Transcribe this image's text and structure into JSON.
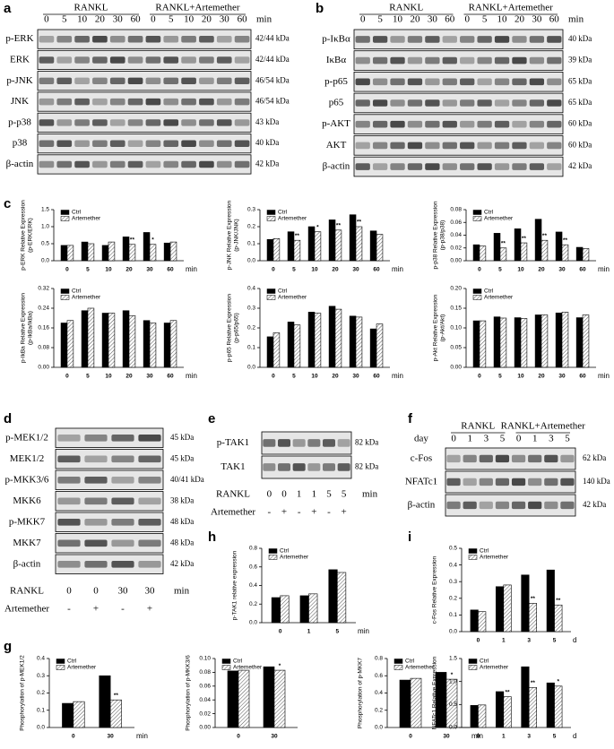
{
  "panel_letters": [
    "a",
    "b",
    "c",
    "d",
    "e",
    "f",
    "g",
    "h",
    "i"
  ],
  "blots": [
    {
      "groups": [
        "RANKL",
        "RANKL+Artemether"
      ],
      "lanes": [
        "0",
        "5",
        "10",
        "20",
        "30",
        "60",
        "0",
        "5",
        "10",
        "20",
        "30",
        "60"
      ],
      "unit": "min",
      "rows": [
        {
          "label": "p-ERK",
          "kda": "42/44 kDa"
        },
        {
          "label": "ERK",
          "kda": "42/44 kDa"
        },
        {
          "label": "p-JNK",
          "kda": "46/54 kDa"
        },
        {
          "label": "JNK",
          "kda": "46/54 kDa"
        },
        {
          "label": "p-p38",
          "kda": "43 kDa"
        },
        {
          "label": "p38",
          "kda": "40 kDa"
        },
        {
          "label": "β-actin",
          "kda": "42 kDa"
        }
      ]
    },
    {
      "groups": [
        "RANKL",
        "RANKL+Artemether"
      ],
      "lanes": [
        "0",
        "5",
        "10",
        "20",
        "30",
        "60",
        "0",
        "5",
        "10",
        "20",
        "30",
        "60"
      ],
      "unit": "min",
      "rows": [
        {
          "label": "p-IκBα",
          "kda": "40 kDa"
        },
        {
          "label": "IκBα",
          "kda": "39 kDa"
        },
        {
          "label": "p-p65",
          "kda": "65 kDa"
        },
        {
          "label": "p65",
          "kda": "65 kDa"
        },
        {
          "label": "p-AKT",
          "kda": "60 kDa"
        },
        {
          "label": "AKT",
          "kda": "60 kDa"
        },
        {
          "label": "β-actin",
          "kda": "42 kDa"
        }
      ]
    },
    {
      "rows": [
        {
          "label": "p-MEK1/2",
          "kda": "45 kDa"
        },
        {
          "label": "MEK1/2",
          "kda": "45 kDa"
        },
        {
          "label": "p-MKK3/6",
          "kda": "40/41 kDa"
        },
        {
          "label": "MKK6",
          "kda": "38 kDa"
        },
        {
          "label": "p-MKK7",
          "kda": "48 kDa"
        },
        {
          "label": "MKK7",
          "kda": "48 kDa"
        },
        {
          "label": "β-actin",
          "kda": "42 kDa"
        }
      ],
      "conditions": [
        {
          "name": "RANKL",
          "values": [
            "0",
            "0",
            "30",
            "30"
          ],
          "unit": "min"
        },
        {
          "name": "Artemether",
          "values": [
            "-",
            "+",
            "-",
            "+"
          ]
        }
      ]
    },
    {
      "rows": [
        {
          "label": "p-TAK1",
          "kda": "82 kDa"
        },
        {
          "label": "TAK1",
          "kda": "82 kDa"
        }
      ],
      "conditions": [
        {
          "name": "RANKL",
          "values": [
            "0",
            "0",
            "1",
            "1",
            "5",
            "5"
          ],
          "unit": "min"
        },
        {
          "name": "Artemether",
          "values": [
            "-",
            "+",
            "-",
            "+",
            "-",
            "+"
          ]
        }
      ]
    },
    {
      "groups": [
        "RANKL",
        "RANKL+Artemether"
      ],
      "row_label": "day",
      "lanes": [
        "0",
        "1",
        "3",
        "5",
        "0",
        "1",
        "3",
        "5"
      ],
      "rows": [
        {
          "label": "c-Fos",
          "kda": "62 kDa"
        },
        {
          "label": "NFATc1",
          "kda": "140 kDa"
        },
        {
          "label": "β-actin",
          "kda": "42 kDa"
        }
      ]
    }
  ],
  "chart_data": [
    {
      "type": "bar",
      "ylabel": [
        "p-ERK Relative Expression",
        "(p-ERK/ERK)"
      ],
      "categories": [
        "0",
        "5",
        "10",
        "20",
        "30",
        "60"
      ],
      "x_unit": "min",
      "ylim": [
        0,
        1.5
      ],
      "yticks": [
        {
          "value": 0,
          "label": "0.0"
        },
        0.5,
        {
          "value": 1,
          "label": "1.0"
        },
        1.5
      ],
      "series": [
        {
          "name": "Ctrl",
          "color": "#000000",
          "values": [
            0.45,
            0.55,
            0.45,
            0.7,
            0.83,
            0.52
          ]
        },
        {
          "name": "Artemether",
          "color": "#ffffff",
          "pattern": "diagonal",
          "values": [
            0.45,
            0.5,
            0.55,
            0.48,
            0.48,
            0.55
          ]
        }
      ],
      "annotations": [
        {
          "category": "20",
          "text": "**"
        },
        {
          "category": "30",
          "text": "*"
        }
      ]
    },
    {
      "type": "bar",
      "ylabel": [
        "p-JNK Relative Expression",
        "(p-JNK/JNK)"
      ],
      "categories": [
        "0",
        "5",
        "10",
        "20",
        "30",
        "60"
      ],
      "x_unit": "min",
      "ylim": [
        0,
        0.3
      ],
      "yticks": [
        {
          "value": 0,
          "label": "0.0"
        },
        0.1,
        0.2,
        0.3
      ],
      "series": [
        {
          "name": "Ctrl",
          "color": "#000000",
          "values": [
            0.125,
            0.17,
            0.2,
            0.24,
            0.27,
            0.175
          ]
        },
        {
          "name": "Artemether",
          "color": "#ffffff",
          "pattern": "diagonal",
          "values": [
            0.13,
            0.12,
            0.17,
            0.18,
            0.2,
            0.155
          ]
        }
      ],
      "annotations": [
        {
          "category": "5",
          "text": "**"
        },
        {
          "category": "10",
          "text": "*"
        },
        {
          "category": "20",
          "text": "**"
        },
        {
          "category": "30",
          "text": "**"
        }
      ]
    },
    {
      "type": "bar",
      "ylabel": [
        "p-p38 Relative Expression",
        "(p-p38/p38)"
      ],
      "categories": [
        "0",
        "5",
        "10",
        "20",
        "30",
        "60"
      ],
      "x_unit": "min",
      "ylim": [
        0,
        0.08
      ],
      "yticks": [
        {
          "value": 0,
          "label": "0.00"
        },
        0.02,
        0.04,
        0.06,
        0.08
      ],
      "series": [
        {
          "name": "Ctrl",
          "color": "#000000",
          "values": [
            0.025,
            0.043,
            0.05,
            0.065,
            0.045,
            0.021
          ]
        },
        {
          "name": "Artemether",
          "color": "#ffffff",
          "pattern": "diagonal",
          "values": [
            0.023,
            0.02,
            0.028,
            0.032,
            0.025,
            0.019
          ]
        }
      ],
      "annotations": [
        {
          "category": "5",
          "text": "**"
        },
        {
          "category": "10",
          "text": "**"
        },
        {
          "category": "20",
          "text": "**"
        },
        {
          "category": "30",
          "text": "**"
        }
      ]
    },
    {
      "type": "bar",
      "ylabel": [
        "p-IkBa Relative Expression",
        "(p-IkBa/IkBa)"
      ],
      "categories": [
        "0",
        "5",
        "10",
        "20",
        "30",
        "60"
      ],
      "x_unit": "min",
      "ylim": [
        0,
        0.32
      ],
      "yticks": [
        {
          "value": 0,
          "label": "0.00"
        },
        0.08,
        0.16,
        0.24,
        0.32
      ],
      "series": [
        {
          "name": "Ctrl",
          "color": "#000000",
          "values": [
            0.18,
            0.23,
            0.22,
            0.23,
            0.19,
            0.18
          ]
        },
        {
          "name": "Artemether",
          "color": "#ffffff",
          "pattern": "diagonal",
          "values": [
            0.19,
            0.24,
            0.22,
            0.21,
            0.18,
            0.19
          ]
        }
      ]
    },
    {
      "type": "bar",
      "ylabel": [
        "p-p65 Relative Expression",
        "(p-p65/p65)"
      ],
      "categories": [
        "0",
        "5",
        "10",
        "20",
        "30",
        "60"
      ],
      "x_unit": "min",
      "ylim": [
        0,
        0.4
      ],
      "yticks": [
        {
          "value": 0,
          "label": "0.0"
        },
        0.1,
        0.2,
        0.3,
        0.4
      ],
      "series": [
        {
          "name": "Ctrl",
          "color": "#000000",
          "values": [
            0.155,
            0.23,
            0.28,
            0.31,
            0.26,
            0.195
          ]
        },
        {
          "name": "Artemether",
          "color": "#ffffff",
          "pattern": "diagonal",
          "values": [
            0.175,
            0.215,
            0.275,
            0.295,
            0.255,
            0.22
          ]
        }
      ]
    },
    {
      "type": "bar",
      "ylabel": [
        "p-Akt Relative Expression",
        "(p-Akt/Akt)"
      ],
      "categories": [
        "0",
        "5",
        "10",
        "20",
        "30",
        "60"
      ],
      "x_unit": "min",
      "ylim": [
        0,
        0.2
      ],
      "yticks": [
        {
          "value": 0,
          "label": "0.00"
        },
        0.05,
        {
          "value": 0.1,
          "label": "0.10"
        },
        0.15,
        {
          "value": 0.2,
          "label": "0.20"
        }
      ],
      "series": [
        {
          "name": "Ctrl",
          "color": "#000000",
          "values": [
            0.118,
            0.128,
            0.126,
            0.133,
            0.138,
            0.126
          ]
        },
        {
          "name": "Artemether",
          "color": "#ffffff",
          "pattern": "diagonal",
          "values": [
            0.118,
            0.125,
            0.124,
            0.133,
            0.14,
            0.133
          ]
        }
      ]
    },
    {
      "type": "bar",
      "ylabel": [
        "Phosphorylation of p-MEK1/2"
      ],
      "categories": [
        "0",
        "30"
      ],
      "x_unit": "min",
      "ylim": [
        0,
        0.4
      ],
      "yticks": [
        {
          "value": 0,
          "label": "0.0"
        },
        0.1,
        0.2,
        0.3,
        0.4
      ],
      "series": [
        {
          "name": "Ctrl",
          "color": "#000000",
          "values": [
            0.14,
            0.3
          ]
        },
        {
          "name": "Artemether",
          "color": "#ffffff",
          "pattern": "diagonal",
          "values": [
            0.15,
            0.16
          ]
        }
      ],
      "annotations": [
        {
          "category": "30",
          "text": "**"
        }
      ]
    },
    {
      "type": "bar",
      "ylabel": [
        "Phosphorylation of p-MKK3/6"
      ],
      "categories": [
        "0",
        "30"
      ],
      "ylim": [
        0,
        0.1
      ],
      "yticks": [
        {
          "value": 0,
          "label": "0.00"
        },
        0.02,
        0.04,
        0.06,
        0.08,
        {
          "value": 0.1,
          "label": "0.10"
        }
      ],
      "series": [
        {
          "name": "Ctrl",
          "color": "#000000",
          "values": [
            0.082,
            0.088
          ]
        },
        {
          "name": "Artemether",
          "color": "#ffffff",
          "pattern": "diagonal",
          "values": [
            0.083,
            0.083
          ]
        }
      ],
      "annotations": [
        {
          "category": "30",
          "text": "*"
        }
      ]
    },
    {
      "type": "bar",
      "ylabel": [
        "Phosphorylation of p-MKK7"
      ],
      "categories": [
        "0",
        "30"
      ],
      "x_unit": "min",
      "ylim": [
        0,
        0.8
      ],
      "yticks": [
        {
          "value": 0,
          "label": "0.0"
        },
        0.2,
        0.4,
        0.6,
        0.8
      ],
      "series": [
        {
          "name": "Ctrl",
          "color": "#000000",
          "values": [
            0.55,
            0.64
          ]
        },
        {
          "name": "Artemether",
          "color": "#ffffff",
          "pattern": "diagonal",
          "values": [
            0.57,
            0.56
          ]
        }
      ],
      "annotations": [
        {
          "category": "30",
          "text": "*"
        }
      ]
    },
    {
      "type": "bar",
      "ylabel": [
        "p-TAK1 relative expression"
      ],
      "categories": [
        "0",
        "1",
        "5"
      ],
      "x_unit": "min",
      "ylim": [
        0,
        0.8
      ],
      "yticks": [
        {
          "value": 0,
          "label": "0.0"
        },
        0.2,
        0.4,
        0.6,
        0.8
      ],
      "series": [
        {
          "name": "Ctrl",
          "color": "#000000",
          "values": [
            0.27,
            0.29,
            0.57
          ]
        },
        {
          "name": "Artemether",
          "color": "#ffffff",
          "pattern": "diagonal",
          "values": [
            0.29,
            0.31,
            0.54
          ]
        }
      ]
    },
    {
      "type": "bar",
      "ylabel": [
        "c-Fos Relative Expression"
      ],
      "categories": [
        "0",
        "1",
        "3",
        "5"
      ],
      "x_unit": "d",
      "ylim": [
        0,
        0.5
      ],
      "yticks": [
        {
          "value": 0,
          "label": "0.0"
        },
        0.1,
        0.2,
        0.3,
        0.4,
        0.5
      ],
      "series": [
        {
          "name": "Ctrl",
          "color": "#000000",
          "values": [
            0.13,
            0.27,
            0.34,
            0.37
          ]
        },
        {
          "name": "Artemether",
          "color": "#ffffff",
          "pattern": "diagonal",
          "values": [
            0.12,
            0.28,
            0.17,
            0.16
          ]
        }
      ],
      "annotations": [
        {
          "category": "3",
          "text": "**"
        },
        {
          "category": "5",
          "text": "**"
        }
      ]
    },
    {
      "type": "bar",
      "ylabel": [
        "NFATc1 Relative Expression"
      ],
      "categories": [
        "0",
        "1",
        "3",
        "5"
      ],
      "x_unit": "d",
      "ylim": [
        0,
        1.5
      ],
      "yticks": [
        {
          "value": 0,
          "label": "0.0"
        },
        0.5,
        {
          "value": 1,
          "label": "1.0"
        },
        1.5
      ],
      "series": [
        {
          "name": "Ctrl",
          "color": "#000000",
          "values": [
            0.48,
            0.78,
            1.32,
            0.97
          ]
        },
        {
          "name": "Artemether",
          "color": "#ffffff",
          "pattern": "diagonal",
          "values": [
            0.49,
            0.67,
            0.87,
            0.9
          ]
        }
      ],
      "annotations": [
        {
          "category": "1",
          "text": "**"
        },
        {
          "category": "3",
          "text": "**"
        },
        {
          "category": "5",
          "text": "*"
        }
      ]
    }
  ]
}
